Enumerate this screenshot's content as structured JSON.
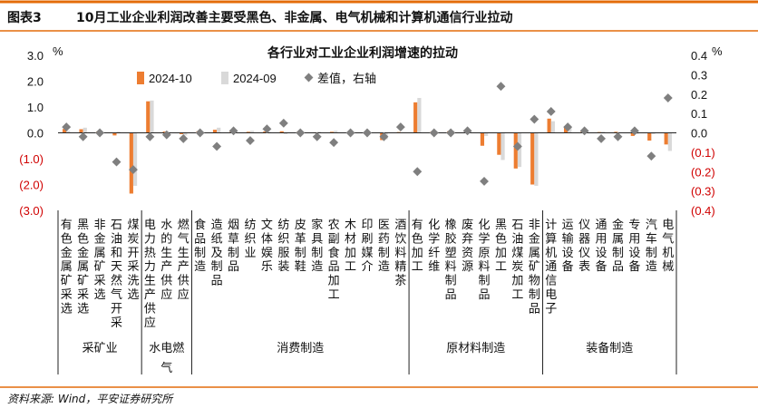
{
  "header": {
    "label": "图表3",
    "title": "10月工业企业利润改善主要受黑色、非金属、电气机械和计算机通信行业拉动"
  },
  "source": "资料来源: Wind，平安证券研究所",
  "colors": {
    "series_2024_10": "#ED7D31",
    "series_2024_09": "#D9D9D9",
    "diff_marker": "#7F7F7F",
    "header_bar": "#E46C0A",
    "negative_tick": "#D00000"
  },
  "chart_data": {
    "type": "bar",
    "title": "各行业对工业企业利润增速的拉动",
    "ylabel_left": "%",
    "ylabel_right": "%",
    "ylim_left": [
      -3.0,
      3.0
    ],
    "ylim_right": [
      -0.4,
      0.4
    ],
    "left_ticks": [
      "3.0",
      "2.0",
      "1.0",
      "0.0",
      "(1.0)",
      "(2.0)",
      "(3.0)"
    ],
    "left_tick_values": [
      3,
      2,
      1,
      0,
      -1,
      -2,
      -3
    ],
    "right_ticks": [
      "0.4",
      "0.3",
      "0.2",
      "0.1",
      "0.0",
      "(0.1)",
      "(0.2)",
      "(0.3)",
      "(0.4)"
    ],
    "right_tick_values": [
      0.4,
      0.3,
      0.2,
      0.1,
      0,
      -0.1,
      -0.2,
      -0.3,
      -0.4
    ],
    "legend": {
      "s1": "2024-10",
      "s2": "2024-09",
      "s3": "差值，右轴",
      "position": "top"
    },
    "categories": [
      "有色金属矿采选",
      "黑色金属矿采选",
      "非金属矿采选",
      "石油和天然气开采",
      "煤炭开采洗选",
      "电力热力生产供应",
      "水的生产供应",
      "燃气生产供应",
      "食品制造",
      "造纸及制品",
      "烟草制品",
      "纺织业",
      "文体娱乐",
      "纺织服装",
      "皮革制鞋",
      "家具制造",
      "农副食品加工",
      "木材加工",
      "印刷媒介",
      "医药制造",
      "酒饮料精茶",
      "有色加工",
      "化学纤维",
      "橡胶塑料制品",
      "废弃资源",
      "化学原料制品",
      "黑色加工",
      "石油煤炭加工",
      "非金属矿物制品",
      "计算机通信电子",
      "运输设备",
      "仪器仪表",
      "通用设备",
      "金属制品",
      "专用设备",
      "汽车制造",
      "电气机械"
    ],
    "series": [
      {
        "name": "2024-10",
        "axis": "left",
        "values": [
          0.15,
          0.14,
          0.05,
          -0.1,
          -2.35,
          1.22,
          0.05,
          -0.05,
          0.06,
          0.12,
          0.04,
          0.04,
          0.05,
          0.06,
          0.04,
          0.02,
          0.04,
          0.02,
          0.02,
          -0.28,
          0.03,
          1.18,
          0.05,
          0.06,
          0.02,
          -0.5,
          -0.85,
          -1.38,
          -2.0,
          0.55,
          0.25,
          0.05,
          0.03,
          0.04,
          -0.12,
          -0.3,
          -0.45
        ]
      },
      {
        "name": "2024-09",
        "axis": "left",
        "values": [
          0.08,
          0.2,
          0.03,
          0.05,
          -2.05,
          1.25,
          0.04,
          -0.1,
          0.04,
          0.2,
          0.02,
          0.08,
          0.04,
          -0.05,
          0.06,
          0.05,
          0.08,
          0.02,
          0.02,
          -0.25,
          0.02,
          1.35,
          0.04,
          0.08,
          0.05,
          -0.12,
          -1.05,
          -1.32,
          -2.05,
          0.45,
          0.2,
          0.06,
          0.05,
          0.02,
          -0.05,
          -0.05,
          -0.7
        ]
      },
      {
        "name": "差值，右轴",
        "axis": "right",
        "values": [
          0.03,
          -0.02,
          0.0,
          -0.15,
          -0.19,
          -0.02,
          -0.01,
          -0.03,
          0.0,
          -0.07,
          0.01,
          -0.04,
          0.02,
          0.05,
          0.0,
          -0.02,
          -0.05,
          0.0,
          0.0,
          -0.02,
          0.03,
          -0.2,
          0.0,
          0.0,
          0.01,
          -0.25,
          0.24,
          -0.07,
          0.07,
          0.11,
          0.03,
          0.01,
          -0.03,
          -0.02,
          0.01,
          -0.12,
          0.18
        ]
      }
    ],
    "groups": [
      {
        "label": "采矿业",
        "start": 0,
        "end": 4
      },
      {
        "label": "水电燃气",
        "start": 5,
        "end": 7
      },
      {
        "label": "消费制造",
        "start": 8,
        "end": 20
      },
      {
        "label": "原材料制造",
        "start": 21,
        "end": 28
      },
      {
        "label": "装备制造",
        "start": 29,
        "end": 36
      }
    ],
    "grid": false
  }
}
